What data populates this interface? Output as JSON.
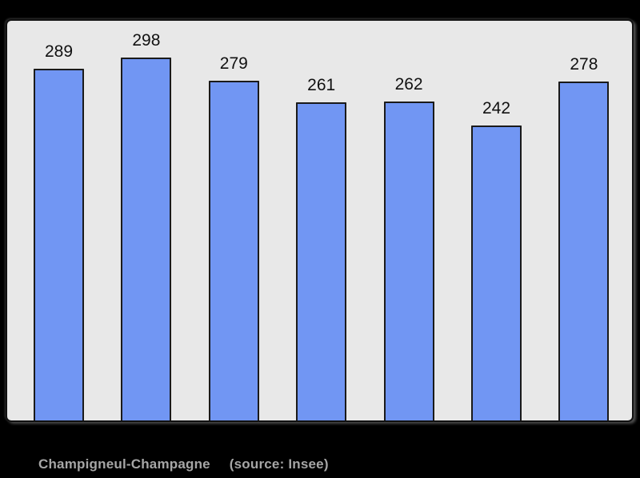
{
  "page": {
    "background": "#000000"
  },
  "chart_data": {
    "type": "bar",
    "values": [
      289,
      298,
      279,
      261,
      262,
      242,
      278
    ],
    "data_labels": [
      "289",
      "298",
      "279",
      "261",
      "262",
      "242",
      "278"
    ],
    "title": "Champigneul-Champagne",
    "source_note": "(source: Insee)",
    "ylim": [
      0,
      298
    ],
    "grid": false,
    "legend": "none",
    "plot_background": "#e8e8e8",
    "plot_border": "#111111",
    "bar_fill": "#7196f3",
    "bar_border": "#1a1a1a",
    "value_label_color": "#111111",
    "footer_text_color": "#a6a6a6"
  }
}
